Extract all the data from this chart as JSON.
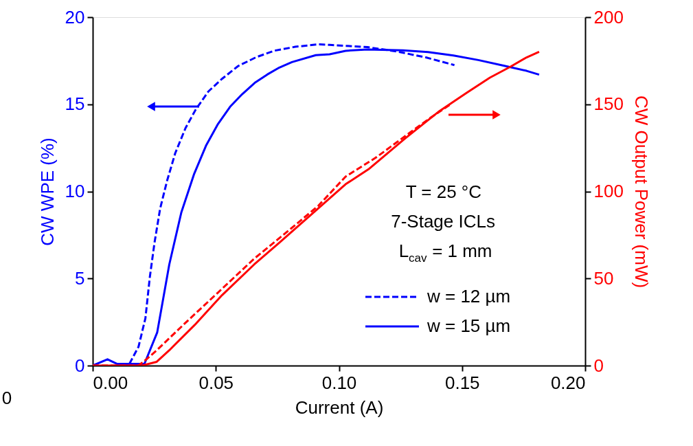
{
  "chart_data": {
    "type": "line",
    "xlabel": "Current (A)",
    "ylabel": "CW  WPE  (%)",
    "y2label": "CW Output Power (mW)",
    "xlim": [
      0,
      0.2
    ],
    "xticks": [
      {
        "value": 0,
        "label": "0.00"
      },
      {
        "value": 0.05,
        "label": "0.05"
      },
      {
        "value": 0.1,
        "label": "0.10"
      },
      {
        "value": 0.15,
        "label": "0.15"
      },
      {
        "value": 0.2,
        "label": "0.20"
      }
    ],
    "ylim": [
      0,
      20
    ],
    "yticks": [
      0,
      5,
      10,
      15,
      20
    ],
    "y2lim": [
      0,
      200
    ],
    "y2ticks": [
      0,
      50,
      100,
      150,
      200
    ],
    "grid": false,
    "legend": "bottom right",
    "annotations": [
      "T = 25 °C",
      "7-Stage ICLs",
      "L$_{cav}$ = 1 mm",
      "0"
    ],
    "series": [
      {
        "name": "w = 12 µm",
        "color": "#0000ff",
        "line_style": "dashed",
        "axis": "y",
        "x": [
          0.0149,
          0.0186,
          0.0214,
          0.0232,
          0.0251,
          0.0274,
          0.0302,
          0.0335,
          0.0377,
          0.0418,
          0.047,
          0.0525,
          0.059,
          0.0665,
          0.0739,
          0.0823,
          0.0916,
          0.0962,
          0.1116,
          0.1232,
          0.1353,
          0.1469
        ],
        "values": [
          0.1,
          1.08,
          2.72,
          5.09,
          7.06,
          9.03,
          10.61,
          12.19,
          13.64,
          14.69,
          15.74,
          16.46,
          17.19,
          17.71,
          18.08,
          18.3,
          18.44,
          18.41,
          18.28,
          18.04,
          17.69,
          17.25
        ]
      },
      {
        "name": "w = 15 µm",
        "color": "#0000ff",
        "line_style": "solid",
        "axis": "y",
        "x": [
          0,
          0.006,
          0.0098,
          0.0116,
          0.0186,
          0.021,
          0.0262,
          0.0311,
          0.036,
          0.0411,
          0.046,
          0.0507,
          0.0558,
          0.0607,
          0.0658,
          0.0709,
          0.0758,
          0.0809,
          0.0906,
          0.0962,
          0.1027,
          0.1116,
          0.126,
          0.1362,
          0.1465,
          0.1566,
          0.1678,
          0.1762,
          0.1813
        ],
        "values": [
          0,
          0.36,
          0.1,
          0.1,
          0.1,
          0.1,
          1.91,
          5.81,
          8.8,
          10.97,
          12.62,
          13.83,
          14.86,
          15.58,
          16.23,
          16.71,
          17.11,
          17.42,
          17.82,
          17.87,
          18.07,
          18.15,
          18.1,
          18.0,
          17.8,
          17.54,
          17.19,
          16.92,
          16.7
        ]
      },
      {
        "color": "#ff0000",
        "line_style": "dashed",
        "axis": "y2",
        "x": [
          0,
          0.0186,
          0.0218,
          0.026,
          0.0377,
          0.0507,
          0.0656,
          0.0804,
          0.0916,
          0.1027,
          0.1149,
          0.1289,
          0.1372,
          0.1456
        ],
        "values": [
          0,
          0,
          3.6,
          8.8,
          24.6,
          41.7,
          61.4,
          78.5,
          91.7,
          108.5,
          119.3,
          133.8,
          142.3,
          150.2
        ]
      },
      {
        "color": "#ff0000",
        "line_style": "solid",
        "axis": "y2",
        "x": [
          0,
          0.02,
          0.026,
          0.0311,
          0.0414,
          0.0525,
          0.0656,
          0.0758,
          0.0906,
          0.1027,
          0.112,
          0.1269,
          0.1409,
          0.152,
          0.1613,
          0.1697,
          0.1762,
          0.1813
        ],
        "values": [
          0,
          0,
          2.2,
          8.8,
          23.3,
          40.4,
          58.1,
          70.6,
          89.0,
          104.1,
          112.7,
          130.4,
          146.2,
          156.7,
          165.3,
          171.6,
          176.9,
          180.1
        ]
      }
    ]
  }
}
